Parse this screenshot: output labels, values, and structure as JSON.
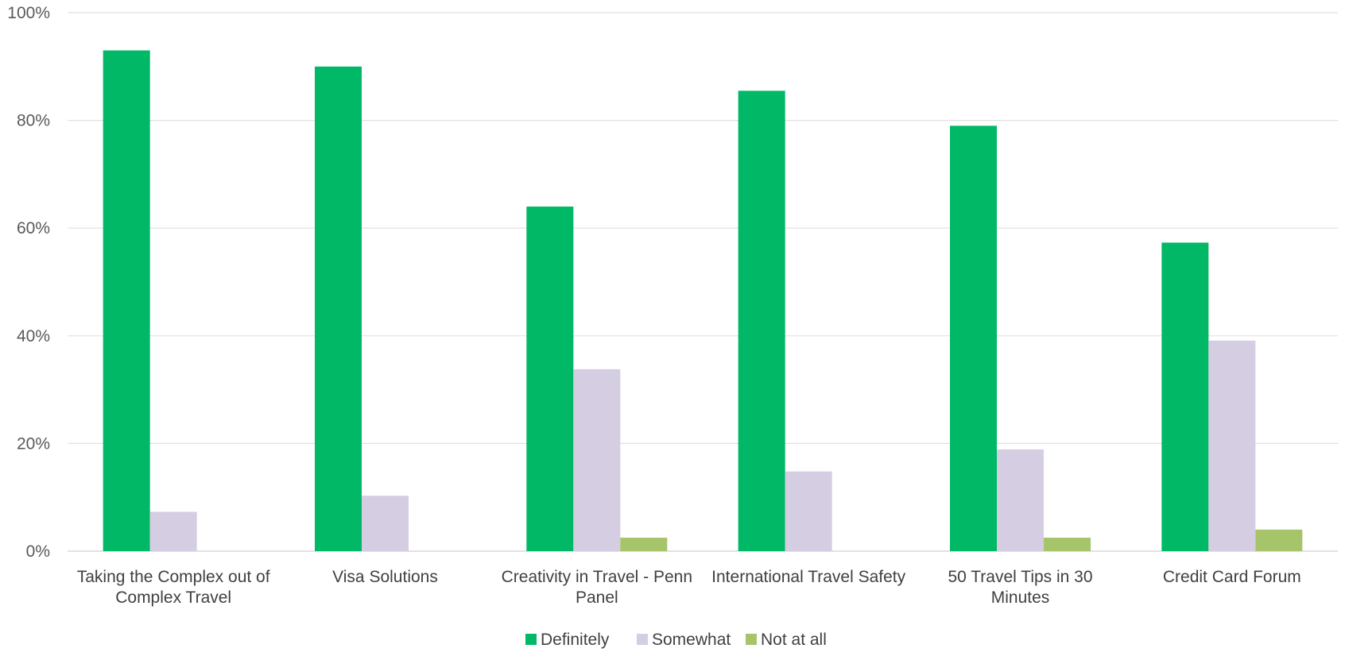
{
  "chart_data": {
    "type": "bar",
    "categories": [
      [
        "Taking the Complex out of",
        "Complex Travel"
      ],
      [
        "Visa Solutions"
      ],
      [
        "Creativity in Travel - Penn",
        "Panel"
      ],
      [
        "International Travel Safety"
      ],
      [
        "50 Travel Tips in 30",
        "Minutes"
      ],
      [
        "Credit Card Forum"
      ]
    ],
    "series": [
      {
        "name": "Definitely",
        "color": "#00b865",
        "values": [
          93,
          90,
          64,
          85.5,
          79,
          57.3
        ]
      },
      {
        "name": "Somewhat",
        "color": "#d5cde2",
        "values": [
          7.3,
          10.3,
          33.8,
          14.8,
          18.9,
          39.1
        ]
      },
      {
        "name": "Not at all",
        "color": "#a6c46a",
        "values": [
          0,
          0,
          2.5,
          0,
          2.5,
          4
        ]
      }
    ],
    "ylim": [
      0,
      100
    ],
    "yticks": [
      "0%",
      "20%",
      "40%",
      "60%",
      "80%",
      "100%"
    ],
    "grid": true,
    "legend_position": "bottom"
  }
}
